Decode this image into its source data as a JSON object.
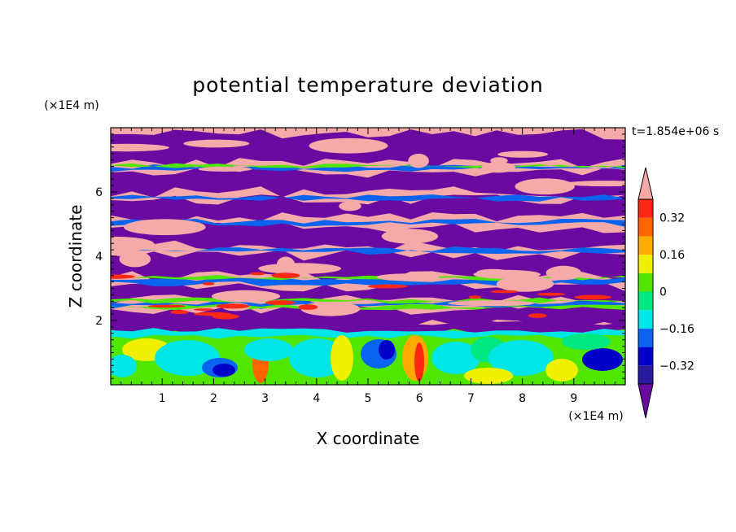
{
  "chart_data": {
    "type": "heatmap",
    "title": "potential temperature deviation",
    "xlabel": "X coordinate",
    "ylabel": "Z coordinate",
    "x_unit": "(×1E4 m)",
    "y_unit": "(×1E4 m)",
    "time_label": "t=1.854e+06 s",
    "xlim": [
      0,
      10
    ],
    "ylim": [
      0,
      8
    ],
    "x_ticks": [
      "1",
      "2",
      "3",
      "4",
      "5",
      "6",
      "7",
      "8",
      "9"
    ],
    "y_ticks": [
      "2",
      "4",
      "6"
    ],
    "colorbar": {
      "levels": [
        -0.4,
        -0.32,
        -0.24,
        -0.16,
        -0.08,
        0,
        0.08,
        0.16,
        0.24,
        0.32,
        0.4
      ],
      "labels": [
        "0.32",
        "0.16",
        "0",
        "−0.16",
        "−0.32"
      ],
      "colors": [
        "#6a0aa0",
        "#2a1aa0",
        "#0000c8",
        "#0a64f0",
        "#00e6e6",
        "#00e682",
        "#50e600",
        "#f0f000",
        "#ffaa00",
        "#ff6400",
        "#ff2814",
        "#f5a9a9"
      ],
      "extend": "both"
    }
  },
  "colors": {
    "low": "#6a0aa0",
    "high": "#f5a9a9",
    "background": "#ffffff"
  }
}
